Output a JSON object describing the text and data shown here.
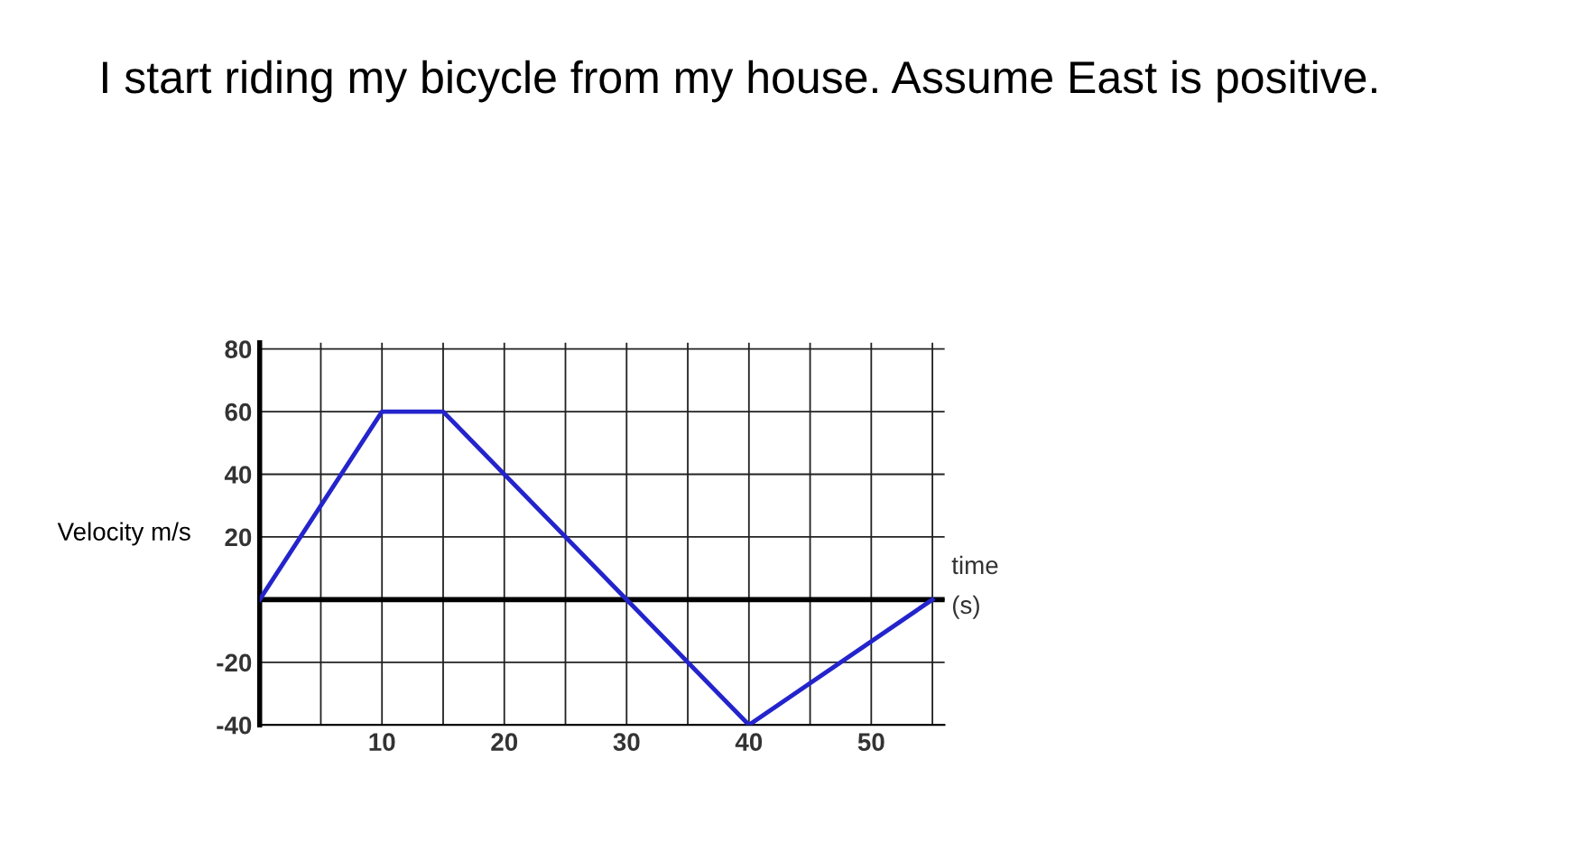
{
  "chart_data": {
    "type": "line",
    "title": "I start riding my bicycle from my house. Assume East is positive.",
    "xlabel": "time\n(s)",
    "ylabel": "Velocity m/s",
    "x": [
      0,
      10,
      15,
      40,
      55
    ],
    "series": [
      {
        "color": "#2424cc",
        "values": [
          0,
          60,
          60,
          -40,
          0
        ]
      }
    ],
    "xlim": [
      0,
      56
    ],
    "ylim": [
      -40,
      82
    ],
    "xticks": [
      {
        "value": 5,
        "label": null
      },
      10,
      {
        "value": 15,
        "label": null
      },
      20,
      {
        "value": 25,
        "label": null
      },
      30,
      {
        "value": 35,
        "label": null
      },
      40,
      {
        "value": 45,
        "label": null
      },
      50,
      {
        "value": 55,
        "label": null
      }
    ],
    "yticks": [
      -40,
      -20,
      {
        "value": 0,
        "label": null
      },
      20,
      40,
      60,
      80
    ],
    "ref_lines": [
      {
        "axis": "y",
        "value": 0,
        "color": "#000000"
      }
    ],
    "grid": true,
    "legend": false,
    "marker": "none",
    "line_style": "solid"
  }
}
